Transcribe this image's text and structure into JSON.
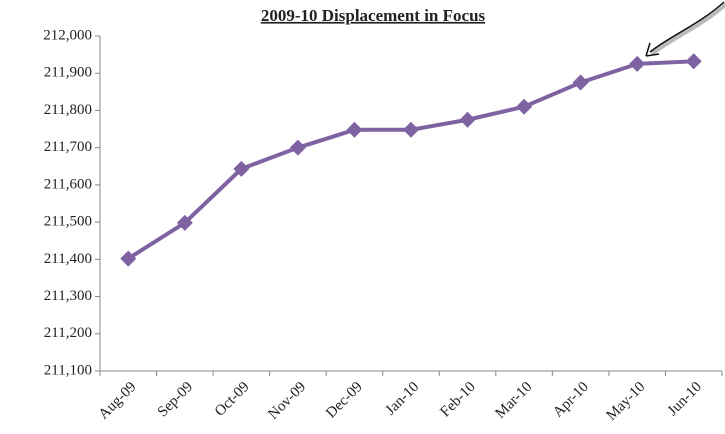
{
  "chart_data": {
    "type": "line",
    "title": "2009-10 Displacement in Focus",
    "categories": [
      "Aug-09",
      "Sep-09",
      "Oct-09",
      "Nov-09",
      "Dec-09",
      "Jan-10",
      "Feb-10",
      "Mar-10",
      "Apr-10",
      "May-10",
      "Jun-10"
    ],
    "values": [
      211402,
      211498,
      211643,
      211700,
      211748,
      211748,
      211775,
      211810,
      211875,
      211925,
      211932
    ],
    "color": "#7f62a1",
    "ylim": [
      211100,
      212000
    ],
    "yticks": [
      {
        "value": 211100,
        "label": "211,100"
      },
      {
        "value": 211200,
        "label": "211,200"
      },
      {
        "value": 211300,
        "label": "211,300"
      },
      {
        "value": 211400,
        "label": "211,400"
      },
      {
        "value": 211500,
        "label": "211,500"
      },
      {
        "value": 211600,
        "label": "211,600"
      },
      {
        "value": 211700,
        "label": "211,700"
      },
      {
        "value": 211800,
        "label": "211,800"
      },
      {
        "value": 211900,
        "label": "211,900"
      },
      {
        "value": 212000,
        "label": "212,000"
      }
    ],
    "grid": false
  }
}
